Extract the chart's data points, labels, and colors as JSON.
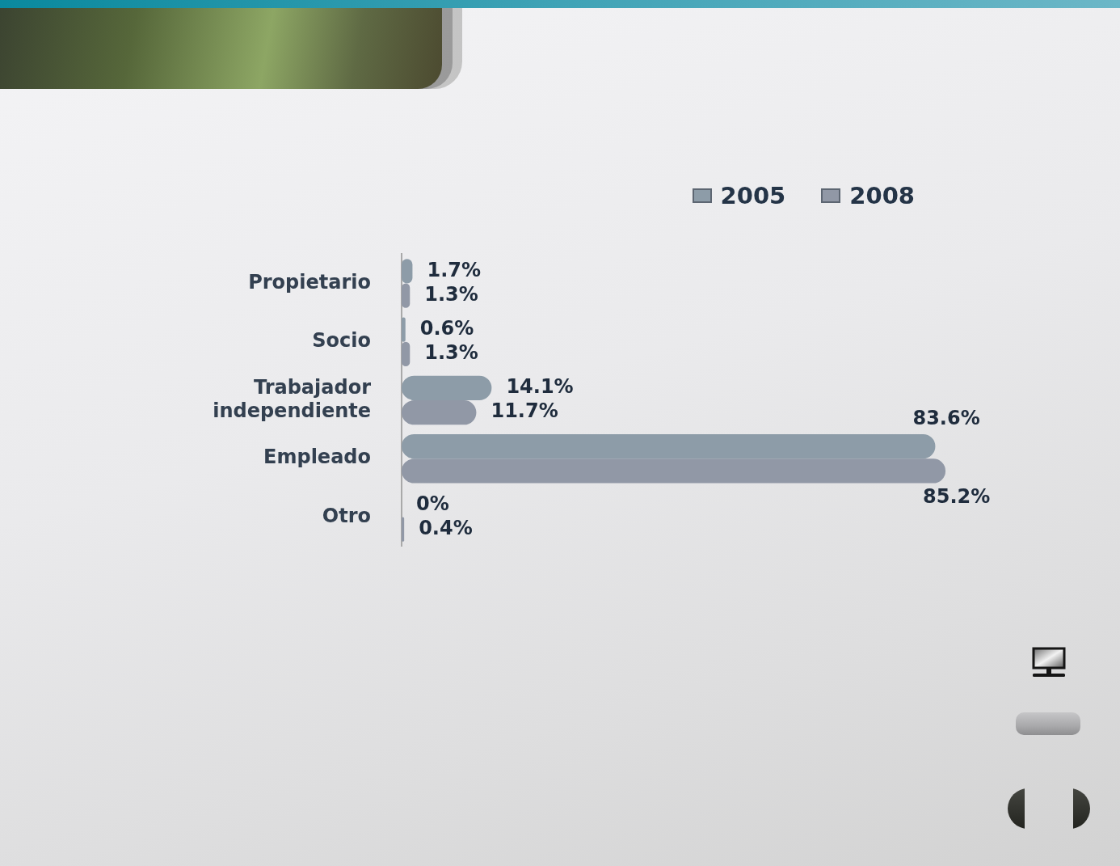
{
  "chart_data": {
    "type": "bar",
    "orientation": "horizontal",
    "tick_labels": "y",
    "legend": "top right",
    "categories": [
      "Propietario",
      "Socio",
      "Trabajador independiente",
      "Empleado",
      "Otro"
    ],
    "series": [
      {
        "name": "2005",
        "color": "#8d9ca8",
        "values": [
          1.7,
          0.6,
          14.1,
          83.6,
          0
        ],
        "value_labels": [
          "1.7%",
          "0.6%",
          "14.1%",
          "83.6%",
          "0%"
        ]
      },
      {
        "name": "2008",
        "color": "#9198a6",
        "values": [
          1.3,
          1.3,
          11.7,
          85.2,
          0.4
        ],
        "value_labels": [
          "1.3%",
          "1.3%",
          "11.7%",
          "85.2%",
          "0.4%"
        ]
      }
    ]
  }
}
